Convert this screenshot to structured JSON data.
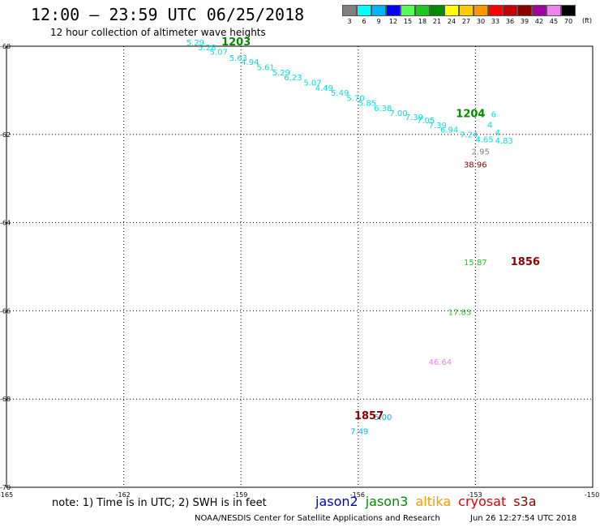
{
  "header": {
    "title": "12:00 — 23:59 UTC 06/25/2018",
    "subtitle": "12 hour collection of altimeter wave heights"
  },
  "legend": {
    "unit": "(ft)",
    "items": [
      {
        "label": "3",
        "color": "#808080"
      },
      {
        "label": "6",
        "color": "#00ffff"
      },
      {
        "label": "9",
        "color": "#00b4ff"
      },
      {
        "label": "12",
        "color": "#0000ff"
      },
      {
        "label": "15",
        "color": "#55ff55"
      },
      {
        "label": "18",
        "color": "#1ec81e"
      },
      {
        "label": "21",
        "color": "#008c00"
      },
      {
        "label": "24",
        "color": "#ffff00"
      },
      {
        "label": "27",
        "color": "#ffcc00"
      },
      {
        "label": "30",
        "color": "#ff9600"
      },
      {
        "label": "33",
        "color": "#ff0000"
      },
      {
        "label": "36",
        "color": "#c80000"
      },
      {
        "label": "39",
        "color": "#8c0000"
      },
      {
        "label": "42",
        "color": "#a000a0"
      },
      {
        "label": "45",
        "color": "#ee82ee"
      },
      {
        "label": "70",
        "color": "#000000"
      }
    ]
  },
  "map": {
    "lon_range": [
      -165,
      -150
    ],
    "lat_range": [
      -70,
      -60
    ],
    "lon_ticks": [
      "-165",
      "-162",
      "-159",
      "-156",
      "-153",
      "-150"
    ],
    "lat_ticks": [
      "-60",
      "-62",
      "-64",
      "-66",
      "-68",
      "-70"
    ],
    "grid": "dotted",
    "observations": [
      {
        "value": "5.29",
        "lon": -160.4,
        "lat": -59.98,
        "color": "#00e0e0"
      },
      {
        "value": "5.28",
        "lon": -160.1,
        "lat": -60.09,
        "color": "#00e0e0"
      },
      {
        "value": "5.07",
        "lon": -159.8,
        "lat": -60.19,
        "color": "#00e0e0"
      },
      {
        "value": "5.63",
        "lon": -159.3,
        "lat": -60.33,
        "color": "#00e0e0"
      },
      {
        "value": "4.94",
        "lon": -159.0,
        "lat": -60.42,
        "color": "#00e0e0"
      },
      {
        "value": "5.61",
        "lon": -158.6,
        "lat": -60.54,
        "color": "#00e0e0"
      },
      {
        "value": "5.29",
        "lon": -158.2,
        "lat": -60.66,
        "color": "#00e0e0"
      },
      {
        "value": "6.23",
        "lon": -157.9,
        "lat": -60.77,
        "color": "#00e0e0"
      },
      {
        "value": "5.07",
        "lon": -157.4,
        "lat": -60.89,
        "color": "#00e0e0"
      },
      {
        "value": "4.49",
        "lon": -157.1,
        "lat": -61.01,
        "color": "#00e0e0"
      },
      {
        "value": "5.49",
        "lon": -156.7,
        "lat": -61.12,
        "color": "#00e0e0"
      },
      {
        "value": "5.70",
        "lon": -156.3,
        "lat": -61.24,
        "color": "#00e0e0"
      },
      {
        "value": "5.85",
        "lon": -156.0,
        "lat": -61.35,
        "color": "#00e0e0"
      },
      {
        "value": "6.38",
        "lon": -155.6,
        "lat": -61.47,
        "color": "#00e0e0"
      },
      {
        "value": "7.00",
        "lon": -155.2,
        "lat": -61.58,
        "color": "#00e0e0"
      },
      {
        "value": "7.39",
        "lon": -154.8,
        "lat": -61.67,
        "color": "#00e0e0"
      },
      {
        "value": "7.05",
        "lon": -154.5,
        "lat": -61.75,
        "color": "#00e0e0"
      },
      {
        "value": "7.39",
        "lon": -154.2,
        "lat": -61.86,
        "color": "#00e0e0"
      },
      {
        "value": "6.94",
        "lon": -153.9,
        "lat": -61.96,
        "color": "#00e0e0"
      },
      {
        "value": "7.24",
        "lon": -153.4,
        "lat": -62.07,
        "color": "#00e0e0"
      },
      {
        "value": "4",
        "lon": -152.7,
        "lat": -61.85,
        "color": "#00e0e0"
      },
      {
        "value": "4",
        "lon": -152.5,
        "lat": -62.02,
        "color": "#00e0e0"
      },
      {
        "value": "4.65",
        "lon": -153.0,
        "lat": -62.18,
        "color": "#00e0e0"
      },
      {
        "value": "4.83",
        "lon": -152.5,
        "lat": -62.21,
        "color": "#00e0e0"
      },
      {
        "value": "6",
        "lon": -152.6,
        "lat": -61.61,
        "color": "#00e0e0"
      },
      {
        "value": "2.95",
        "lon": -153.1,
        "lat": -62.45,
        "color": "#808080"
      },
      {
        "value": "38.96",
        "lon": -153.3,
        "lat": -62.75,
        "color": "#8c0000"
      },
      {
        "value": "15.87",
        "lon": -153.3,
        "lat": -64.96,
        "color": "#1ec81e"
      },
      {
        "value": "17.83",
        "lon": -153.7,
        "lat": -66.09,
        "color": "#1ec81e"
      },
      {
        "value": "46.64",
        "lon": -154.2,
        "lat": -67.22,
        "color": "#ee82ee"
      },
      {
        "value": "5.00",
        "lon": -155.6,
        "lat": -68.47,
        "color": "#00b4ff"
      },
      {
        "value": "7.49",
        "lon": -156.2,
        "lat": -68.8,
        "color": "#00b4ff"
      }
    ],
    "pass_times": [
      {
        "value": "1203",
        "lon": -159.5,
        "lat": -59.98,
        "color": "#008c00"
      },
      {
        "value": "1204",
        "lon": -153.5,
        "lat": -61.61,
        "color": "#008c00"
      },
      {
        "value": "1856",
        "lon": -152.1,
        "lat": -64.96,
        "color": "#8c0000"
      },
      {
        "value": "1857",
        "lon": -156.1,
        "lat": -68.46,
        "color": "#8c0000"
      }
    ]
  },
  "footer": {
    "note": "note: 1) Time is in UTC; 2) SWH is in feet",
    "satellites": [
      {
        "label": "jason2",
        "color": "#0000cc"
      },
      {
        "label": "jason3",
        "color": "#008c00"
      },
      {
        "label": "altika",
        "color": "#ff9600"
      },
      {
        "label": "cryosat",
        "color": "#dd0000"
      },
      {
        "label": "s3a",
        "color": "#8c0000"
      }
    ],
    "credit": "NOAA/NESDIS Center for Satellite Applications and Research",
    "timestamp": "Jun 26 12:27:54 UTC 2018"
  }
}
